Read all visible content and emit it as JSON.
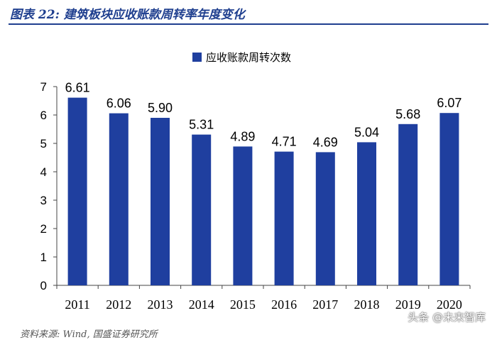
{
  "figure": {
    "title": "图表 22:  建筑板块应收账款周转率年度变化",
    "watermark": "头条 @未来智库",
    "source_note": "资料来源: Wind, 国盛证券研究所"
  },
  "colors": {
    "bar": "#1f3f9f",
    "title": "#1f3f8f",
    "axis": "#444444",
    "text": "#000000"
  },
  "chart_data": {
    "type": "bar",
    "categories": [
      "2011",
      "2012",
      "2013",
      "2014",
      "2015",
      "2016",
      "2017",
      "2018",
      "2019",
      "2020"
    ],
    "series": [
      {
        "name": "应收账款周转次数",
        "values": [
          6.61,
          6.06,
          5.9,
          5.31,
          4.89,
          4.71,
          4.69,
          5.04,
          5.68,
          6.07
        ],
        "value_labels": [
          "6.61",
          "6.06",
          "5.90",
          "5.31",
          "4.89",
          "4.71",
          "4.69",
          "5.04",
          "5.68",
          "6.07"
        ]
      }
    ],
    "title": "",
    "xlabel": "",
    "ylabel": "",
    "ylim": [
      0,
      7
    ],
    "yticks": [
      0,
      1,
      2,
      3,
      4,
      5,
      6,
      7
    ],
    "grid": false,
    "legend_position": "top-center"
  }
}
